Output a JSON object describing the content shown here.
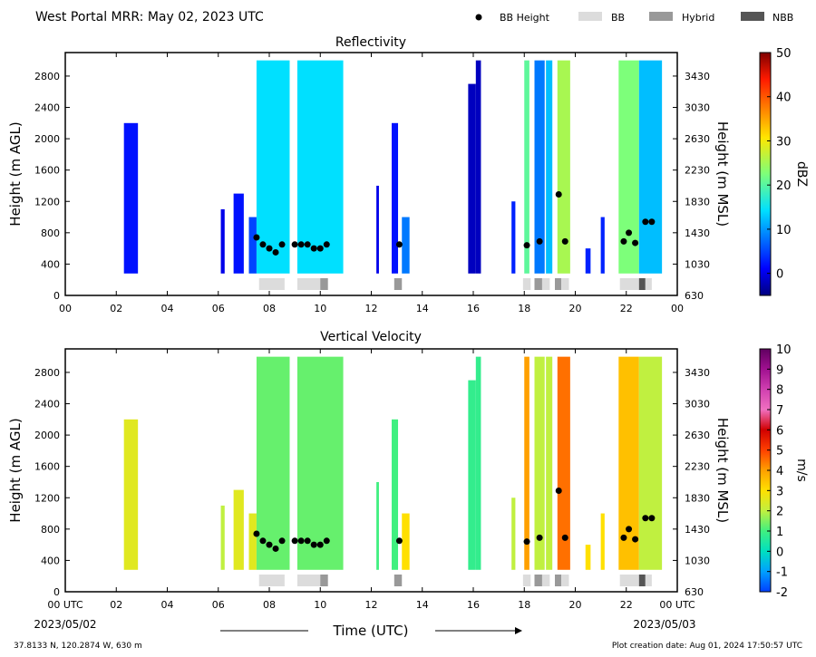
{
  "header": {
    "title": "West Portal MRR:  May 02, 2023 UTC",
    "legend": [
      {
        "label": "BB Height",
        "kind": "dot",
        "color": "#000000"
      },
      {
        "label": "BB",
        "kind": "rect",
        "color": "#dcdcdc"
      },
      {
        "label": "Hybrid",
        "kind": "rect",
        "color": "#999999"
      },
      {
        "label": "NBB",
        "kind": "rect",
        "color": "#555555"
      }
    ]
  },
  "footer": {
    "location": "37.8133 N, 120.2874 W, 630 m",
    "created": "Plot creation date: Aug 01, 2024 17:50:57 UTC",
    "start_date": "2023/05/02",
    "end_date": "2023/05/03",
    "xaxis_title": "Time (UTC)"
  },
  "chart_data": [
    {
      "type": "heatmap",
      "title": "Reflectivity",
      "ylabel": "Height (m AGL)",
      "y2label": "Height (m MSL)",
      "xlim": [
        0,
        24
      ],
      "ylim": [
        0,
        3100
      ],
      "xticks": [
        "00",
        "02",
        "04",
        "06",
        "08",
        "10",
        "12",
        "14",
        "16",
        "18",
        "20",
        "22",
        "00"
      ],
      "yticks": [
        0,
        400,
        800,
        1200,
        1600,
        2000,
        2400,
        2800
      ],
      "y2ticks": [
        "630",
        "1030",
        "1430",
        "1830",
        "2230",
        "2630",
        "3030",
        "3430"
      ],
      "colorbar": {
        "label": "dBZ",
        "min": -5,
        "max": 50,
        "ticks": [
          0,
          10,
          20,
          30,
          40,
          50
        ],
        "colormap": "jet"
      },
      "echoes": [
        {
          "t0": 2.3,
          "t1": 2.85,
          "top": 2200,
          "val": 2
        },
        {
          "t0": 6.1,
          "t1": 6.25,
          "top": 1100,
          "val": 0
        },
        {
          "t0": 6.6,
          "t1": 7.0,
          "top": 1300,
          "val": 2
        },
        {
          "t0": 7.2,
          "t1": 7.5,
          "top": 1000,
          "val": 5
        },
        {
          "t0": 7.5,
          "t1": 8.8,
          "top": 3000,
          "val": 14
        },
        {
          "t0": 9.1,
          "t1": 10.9,
          "top": 3000,
          "val": 14
        },
        {
          "t0": 12.2,
          "t1": 12.3,
          "top": 1400,
          "val": 0
        },
        {
          "t0": 12.8,
          "t1": 13.05,
          "top": 2200,
          "val": 2
        },
        {
          "t0": 13.2,
          "t1": 13.5,
          "top": 1000,
          "val": 8
        },
        {
          "t0": 15.8,
          "t1": 16.1,
          "top": 2700,
          "val": -2
        },
        {
          "t0": 16.1,
          "t1": 16.3,
          "top": 3000,
          "val": -2
        },
        {
          "t0": 17.5,
          "t1": 17.65,
          "top": 1200,
          "val": 3
        },
        {
          "t0": 18.0,
          "t1": 18.2,
          "top": 3000,
          "val": 20
        },
        {
          "t0": 18.4,
          "t1": 18.8,
          "top": 3000,
          "val": 8
        },
        {
          "t0": 18.85,
          "t1": 19.1,
          "top": 3000,
          "val": 12
        },
        {
          "t0": 19.3,
          "t1": 19.8,
          "top": 3000,
          "val": 25
        },
        {
          "t0": 20.4,
          "t1": 20.6,
          "top": 600,
          "val": 3
        },
        {
          "t0": 21.0,
          "t1": 21.15,
          "top": 1000,
          "val": 3
        },
        {
          "t0": 21.7,
          "t1": 22.5,
          "top": 3000,
          "val": 22
        },
        {
          "t0": 22.5,
          "t1": 23.4,
          "top": 3000,
          "val": 12
        }
      ],
      "bb_points": [
        {
          "t": 7.5,
          "h": 740
        },
        {
          "t": 7.75,
          "h": 650
        },
        {
          "t": 8.0,
          "h": 600
        },
        {
          "t": 8.25,
          "h": 550
        },
        {
          "t": 8.5,
          "h": 650
        },
        {
          "t": 9.0,
          "h": 650
        },
        {
          "t": 9.25,
          "h": 650
        },
        {
          "t": 9.5,
          "h": 650
        },
        {
          "t": 9.75,
          "h": 600
        },
        {
          "t": 10.0,
          "h": 600
        },
        {
          "t": 10.25,
          "h": 650
        },
        {
          "t": 13.1,
          "h": 650
        },
        {
          "t": 18.1,
          "h": 640
        },
        {
          "t": 18.6,
          "h": 690
        },
        {
          "t": 19.35,
          "h": 1290
        },
        {
          "t": 19.6,
          "h": 690
        },
        {
          "t": 21.9,
          "h": 690
        },
        {
          "t": 22.1,
          "h": 800
        },
        {
          "t": 22.35,
          "h": 670
        },
        {
          "t": 22.75,
          "h": 940
        },
        {
          "t": 23.0,
          "h": 940
        }
      ],
      "bb_flags": [
        {
          "t0": 7.6,
          "t1": 8.6,
          "type": "BB"
        },
        {
          "t0": 9.1,
          "t1": 10.0,
          "type": "BB"
        },
        {
          "t0": 10.0,
          "t1": 10.3,
          "type": "Hybrid"
        },
        {
          "t0": 12.9,
          "t1": 13.2,
          "type": "Hybrid"
        },
        {
          "t0": 17.95,
          "t1": 18.25,
          "type": "BB"
        },
        {
          "t0": 18.4,
          "t1": 18.7,
          "type": "Hybrid"
        },
        {
          "t0": 18.7,
          "t1": 19.0,
          "type": "BB"
        },
        {
          "t0": 19.2,
          "t1": 19.45,
          "type": "Hybrid"
        },
        {
          "t0": 19.45,
          "t1": 19.75,
          "type": "BB"
        },
        {
          "t0": 21.75,
          "t1": 22.5,
          "type": "BB"
        },
        {
          "t0": 22.5,
          "t1": 22.75,
          "type": "NBB"
        },
        {
          "t0": 22.75,
          "t1": 23.0,
          "type": "BB"
        }
      ]
    },
    {
      "type": "heatmap",
      "title": "Vertical Velocity",
      "ylabel": "Height (m AGL)",
      "y2label": "Height (m MSL)",
      "xlim": [
        0,
        24
      ],
      "ylim": [
        0,
        3100
      ],
      "xticks": [
        "00 UTC",
        "02",
        "04",
        "06",
        "08",
        "10",
        "12",
        "14",
        "16",
        "18",
        "20",
        "22",
        "00 UTC"
      ],
      "yticks": [
        0,
        400,
        800,
        1200,
        1600,
        2000,
        2400,
        2800
      ],
      "y2ticks": [
        "630",
        "1030",
        "1430",
        "1830",
        "2230",
        "2630",
        "3030",
        "3430"
      ],
      "colorbar": {
        "label": "m/s",
        "min": -2,
        "max": 10,
        "ticks": [
          -2,
          -1,
          0,
          1,
          2,
          3,
          4,
          5,
          6,
          7,
          8,
          9,
          10
        ],
        "colormap": "velocity"
      },
      "echoes": [
        {
          "t0": 2.3,
          "t1": 2.85,
          "top": 2200,
          "val": 2.5
        },
        {
          "t0": 6.1,
          "t1": 6.25,
          "top": 1100,
          "val": 2
        },
        {
          "t0": 6.6,
          "t1": 7.0,
          "top": 1300,
          "val": 2.5
        },
        {
          "t0": 7.2,
          "t1": 7.5,
          "top": 1000,
          "val": 2.5
        },
        {
          "t0": 7.5,
          "t1": 8.8,
          "top": 3000,
          "val": 1.3
        },
        {
          "t0": 9.1,
          "t1": 10.9,
          "top": 3000,
          "val": 1.3
        },
        {
          "t0": 12.2,
          "t1": 12.3,
          "top": 1400,
          "val": 1
        },
        {
          "t0": 12.8,
          "t1": 13.05,
          "top": 2200,
          "val": 1
        },
        {
          "t0": 13.2,
          "t1": 13.5,
          "top": 1000,
          "val": 3
        },
        {
          "t0": 15.8,
          "t1": 16.1,
          "top": 2700,
          "val": 0.8
        },
        {
          "t0": 16.1,
          "t1": 16.3,
          "top": 3000,
          "val": 0.8
        },
        {
          "t0": 17.5,
          "t1": 17.65,
          "top": 1200,
          "val": 2
        },
        {
          "t0": 18.0,
          "t1": 18.2,
          "top": 3000,
          "val": 4
        },
        {
          "t0": 18.4,
          "t1": 18.8,
          "top": 3000,
          "val": 2
        },
        {
          "t0": 18.85,
          "t1": 19.1,
          "top": 3000,
          "val": 2
        },
        {
          "t0": 19.3,
          "t1": 19.8,
          "top": 3000,
          "val": 4.5
        },
        {
          "t0": 20.4,
          "t1": 20.6,
          "top": 600,
          "val": 3
        },
        {
          "t0": 21.0,
          "t1": 21.15,
          "top": 1000,
          "val": 3
        },
        {
          "t0": 21.7,
          "t1": 22.5,
          "top": 3000,
          "val": 3.5
        },
        {
          "t0": 22.5,
          "t1": 23.4,
          "top": 3000,
          "val": 2
        }
      ],
      "bb_points": [
        {
          "t": 7.5,
          "h": 740
        },
        {
          "t": 7.75,
          "h": 650
        },
        {
          "t": 8.0,
          "h": 600
        },
        {
          "t": 8.25,
          "h": 550
        },
        {
          "t": 8.5,
          "h": 650
        },
        {
          "t": 9.0,
          "h": 650
        },
        {
          "t": 9.25,
          "h": 650
        },
        {
          "t": 9.5,
          "h": 650
        },
        {
          "t": 9.75,
          "h": 600
        },
        {
          "t": 10.0,
          "h": 600
        },
        {
          "t": 10.25,
          "h": 650
        },
        {
          "t": 13.1,
          "h": 650
        },
        {
          "t": 18.1,
          "h": 640
        },
        {
          "t": 18.6,
          "h": 690
        },
        {
          "t": 19.35,
          "h": 1290
        },
        {
          "t": 19.6,
          "h": 690
        },
        {
          "t": 21.9,
          "h": 690
        },
        {
          "t": 22.1,
          "h": 800
        },
        {
          "t": 22.35,
          "h": 670
        },
        {
          "t": 22.75,
          "h": 940
        },
        {
          "t": 23.0,
          "h": 940
        }
      ],
      "bb_flags": [
        {
          "t0": 7.6,
          "t1": 8.6,
          "type": "BB"
        },
        {
          "t0": 9.1,
          "t1": 10.0,
          "type": "BB"
        },
        {
          "t0": 10.0,
          "t1": 10.3,
          "type": "Hybrid"
        },
        {
          "t0": 12.9,
          "t1": 13.2,
          "type": "Hybrid"
        },
        {
          "t0": 17.95,
          "t1": 18.25,
          "type": "BB"
        },
        {
          "t0": 18.4,
          "t1": 18.7,
          "type": "Hybrid"
        },
        {
          "t0": 18.7,
          "t1": 19.0,
          "type": "BB"
        },
        {
          "t0": 19.2,
          "t1": 19.45,
          "type": "Hybrid"
        },
        {
          "t0": 19.45,
          "t1": 19.75,
          "type": "BB"
        },
        {
          "t0": 21.75,
          "t1": 22.5,
          "type": "BB"
        },
        {
          "t0": 22.5,
          "t1": 22.75,
          "type": "NBB"
        },
        {
          "t0": 22.75,
          "t1": 23.0,
          "type": "BB"
        }
      ]
    }
  ]
}
